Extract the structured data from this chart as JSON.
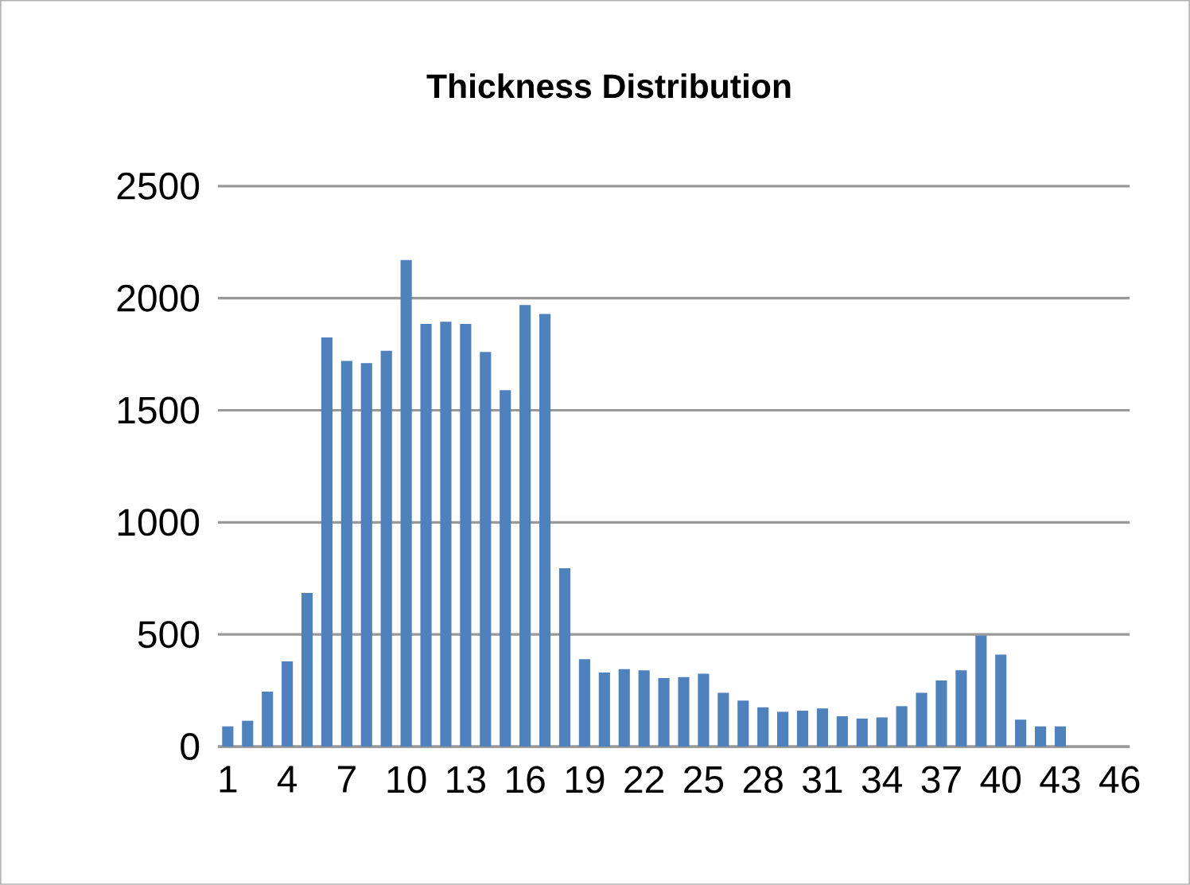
{
  "chart_data": {
    "type": "bar",
    "title": "Thickness Distribution",
    "categories": [
      "1",
      null,
      null,
      "4",
      null,
      null,
      "7",
      null,
      null,
      "10",
      null,
      null,
      "13",
      null,
      null,
      "16",
      null,
      null,
      "19",
      null,
      null,
      "22",
      null,
      null,
      "25",
      null,
      null,
      "28",
      null,
      null,
      "31",
      null,
      null,
      "34",
      null,
      null,
      "37",
      null,
      null,
      "40",
      null,
      null,
      "43",
      null,
      null,
      "46"
    ],
    "values": [
      90,
      115,
      245,
      380,
      685,
      1825,
      1720,
      1710,
      1765,
      2170,
      1885,
      1895,
      1885,
      1760,
      1590,
      1970,
      1930,
      795,
      390,
      330,
      345,
      340,
      305,
      310,
      325,
      240,
      205,
      175,
      155,
      160,
      170,
      135,
      125,
      130,
      180,
      240,
      295,
      340,
      495,
      410,
      120,
      90,
      90,
      null,
      null,
      null
    ],
    "color": "#4f81bd",
    "ylim": [
      0,
      2500
    ],
    "yticks": [
      0,
      500,
      1000,
      1500,
      2000,
      2500
    ],
    "grid": "y"
  }
}
